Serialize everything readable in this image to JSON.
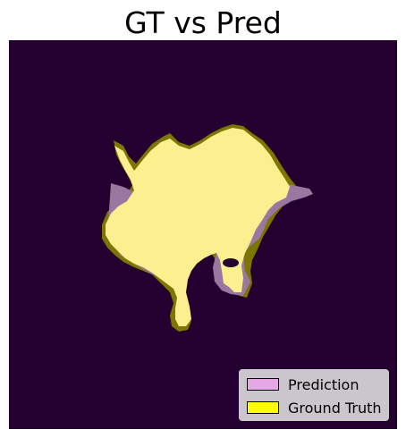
{
  "title": "GT vs Pred",
  "legend": {
    "items": [
      {
        "label": "Prediction",
        "color": "#e3a8e5"
      },
      {
        "label": "Ground Truth",
        "color": "#ffff00"
      }
    ]
  },
  "colors": {
    "background": "#230030",
    "overlap": "#fbef8f",
    "prediction_only": "#9a77a0",
    "ground_truth_only": "#7b7600"
  }
}
